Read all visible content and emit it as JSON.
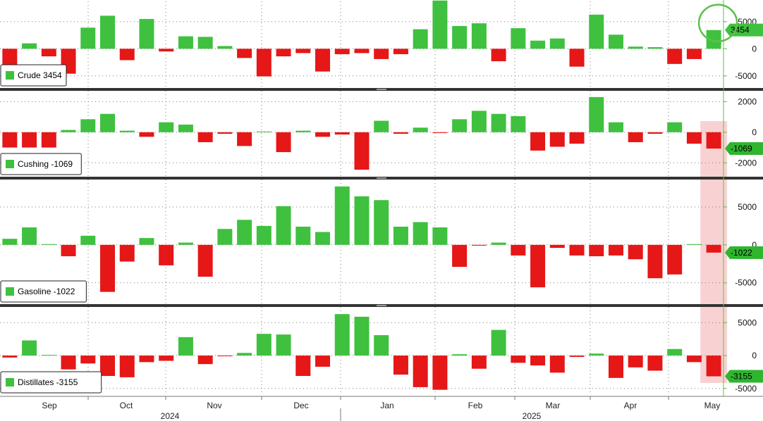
{
  "chart_data": {
    "type": "bar",
    "colors": {
      "positive": "#3fc13f",
      "negative": "#e51717",
      "tag_positive": "#3fc13f",
      "tag_negative": "#2fb52f",
      "highlight_band": "#f7caca",
      "highlight_circle": "#5cc14a",
      "grid": "#7a7a7a",
      "separator": "#333333",
      "right_axis": "#5cc14a"
    },
    "x_axis": {
      "months": [
        "Sep",
        "Oct",
        "Nov",
        "Dec",
        "Jan",
        "Feb",
        "Mar",
        "Apr",
        "May"
      ],
      "years": [
        "2024",
        "2025"
      ]
    },
    "panels": [
      {
        "legend": "Crude 3454",
        "last_value": "3454",
        "ylim": [
          -7500,
          9000
        ],
        "yticks": [
          "5000",
          "0",
          "-5000"
        ],
        "highlight": "circle",
        "values": [
          -4400,
          1000,
          -1400,
          -4600,
          3900,
          6100,
          -2100,
          5500,
          -500,
          2300,
          2200,
          500,
          -1700,
          -5100,
          -1400,
          -800,
          -4200,
          -1000,
          -800,
          -1900,
          -1000,
          3600,
          8900,
          4200,
          4700,
          -2300,
          3800,
          1500,
          1900,
          -3300,
          6300,
          2600,
          400,
          300,
          -2800,
          -1900,
          3454
        ]
      },
      {
        "legend": "Cushing -1069",
        "last_value": "-1069",
        "ylim": [
          -3000,
          2800
        ],
        "yticks": [
          "2000",
          "0",
          "-2000"
        ],
        "highlight": "band",
        "values": [
          -1000,
          -1000,
          -1000,
          150,
          850,
          1200,
          100,
          -300,
          650,
          500,
          -650,
          -100,
          -900,
          50,
          -1300,
          100,
          -300,
          -150,
          -2450,
          750,
          -100,
          300,
          -50,
          850,
          1400,
          1200,
          1050,
          -1200,
          -950,
          -750,
          2300,
          650,
          -650,
          -100,
          650,
          -750,
          -1069
        ]
      },
      {
        "legend": "Gasoline -1022",
        "last_value": "-1022",
        "ylim": [
          -8000,
          8800
        ],
        "yticks": [
          "5000",
          "0",
          "-5000"
        ],
        "highlight": "band",
        "values": [
          800,
          2300,
          100,
          -1500,
          1200,
          -6200,
          -2200,
          900,
          -2700,
          300,
          -4200,
          2100,
          3300,
          2500,
          5100,
          2400,
          1700,
          7700,
          6400,
          5900,
          2400,
          3000,
          2300,
          -2900,
          -100,
          300,
          -1400,
          -5600,
          -400,
          -1400,
          -1500,
          -1400,
          -1900,
          -4400,
          -3900,
          100,
          -1022
        ]
      },
      {
        "legend": "Distillates -3155",
        "last_value": "-3155",
        "ylim": [
          -6200,
          7600
        ],
        "yticks": [
          "5000",
          "0",
          "-5000"
        ],
        "highlight": "band",
        "values": [
          -300,
          2300,
          100,
          -2100,
          -1200,
          -3100,
          -3300,
          -1000,
          -800,
          2800,
          -1300,
          -100,
          400,
          3300,
          3200,
          -3100,
          -1700,
          6300,
          5900,
          3100,
          -2900,
          -4800,
          -5200,
          200,
          -2000,
          3900,
          -1100,
          -1500,
          -2600,
          -200,
          300,
          -3400,
          -1800,
          -2300,
          1000,
          -1000,
          -3155
        ]
      }
    ]
  }
}
